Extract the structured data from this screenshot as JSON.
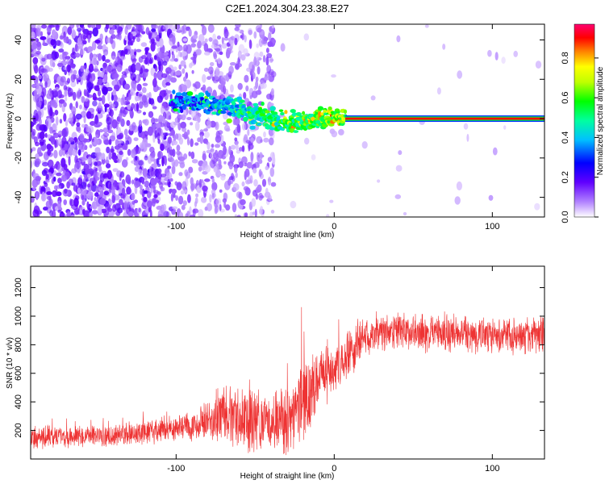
{
  "title": "C2E1.2024.304.23.38.E27",
  "colors": {
    "snr_line": "#ee3333",
    "colormap": [
      "#ffffff",
      "#7a00ff",
      "#0000ff",
      "#00ffff",
      "#00ff00",
      "#ffff00",
      "#ff8000",
      "#ff0000",
      "#ff0080"
    ]
  },
  "chart_data": [
    {
      "type": "heatmap",
      "title": "C2E1.2024.304.23.38.E27",
      "xlabel": "Height of straight line (km)",
      "ylabel": "Frequency (Hz)",
      "xlim": [
        -192,
        133
      ],
      "ylim": [
        -50,
        48
      ],
      "xticks": [
        -100,
        0,
        100
      ],
      "yticks": [
        -40,
        -20,
        0,
        20,
        40
      ],
      "colorbar": {
        "label": "Normalized spectral amplitude",
        "range": [
          0,
          0.97
        ],
        "ticks": [
          0.0,
          0.2,
          0.4,
          0.6,
          0.8
        ]
      },
      "regions": [
        {
          "x_range": [
            -192,
            -103
          ],
          "content": "dense purple noise across all frequencies"
        },
        {
          "x_range": [
            -103,
            -38
          ],
          "content": "sparser purple noise with signal band"
        },
        {
          "x_range": [
            -38,
            133
          ],
          "content": "mostly empty background"
        }
      ],
      "signal_band": [
        {
          "x": -103,
          "freq": 9
        },
        {
          "x": -80,
          "freq": 8
        },
        {
          "x": -60,
          "freq": 5
        },
        {
          "x": -45,
          "freq": 1
        },
        {
          "x": -30,
          "freq": -3
        },
        {
          "x": -15,
          "freq": -1
        },
        {
          "x": 0,
          "freq": 1
        },
        {
          "x": 7,
          "freq": 0
        },
        {
          "x": 133,
          "freq": 0
        }
      ]
    },
    {
      "type": "line",
      "xlabel": "Height of straight line (km)",
      "ylabel": "SNR (10 * v/v)",
      "xlim": [
        -192,
        133
      ],
      "ylim": [
        0,
        1350
      ],
      "xticks": [
        -100,
        0,
        100
      ],
      "yticks": [
        200,
        400,
        600,
        800,
        1000,
        1200
      ],
      "envelope": [
        {
          "x": -192,
          "mean": 150,
          "spread": 90
        },
        {
          "x": -140,
          "mean": 160,
          "spread": 90
        },
        {
          "x": -110,
          "mean": 200,
          "spread": 100
        },
        {
          "x": -85,
          "mean": 240,
          "spread": 140
        },
        {
          "x": -70,
          "mean": 300,
          "spread": 230
        },
        {
          "x": -55,
          "mean": 280,
          "spread": 260
        },
        {
          "x": -40,
          "mean": 240,
          "spread": 220
        },
        {
          "x": -30,
          "mean": 280,
          "spread": 350
        },
        {
          "x": -20,
          "mean": 400,
          "spread": 350
        },
        {
          "x": -10,
          "mean": 560,
          "spread": 260
        },
        {
          "x": 0,
          "mean": 640,
          "spread": 220
        },
        {
          "x": 10,
          "mean": 720,
          "spread": 200
        },
        {
          "x": 20,
          "mean": 860,
          "spread": 160
        },
        {
          "x": 40,
          "mean": 900,
          "spread": 150
        },
        {
          "x": 60,
          "mean": 880,
          "spread": 150
        },
        {
          "x": 100,
          "mean": 860,
          "spread": 150
        },
        {
          "x": 133,
          "mean": 870,
          "spread": 150
        }
      ]
    }
  ]
}
